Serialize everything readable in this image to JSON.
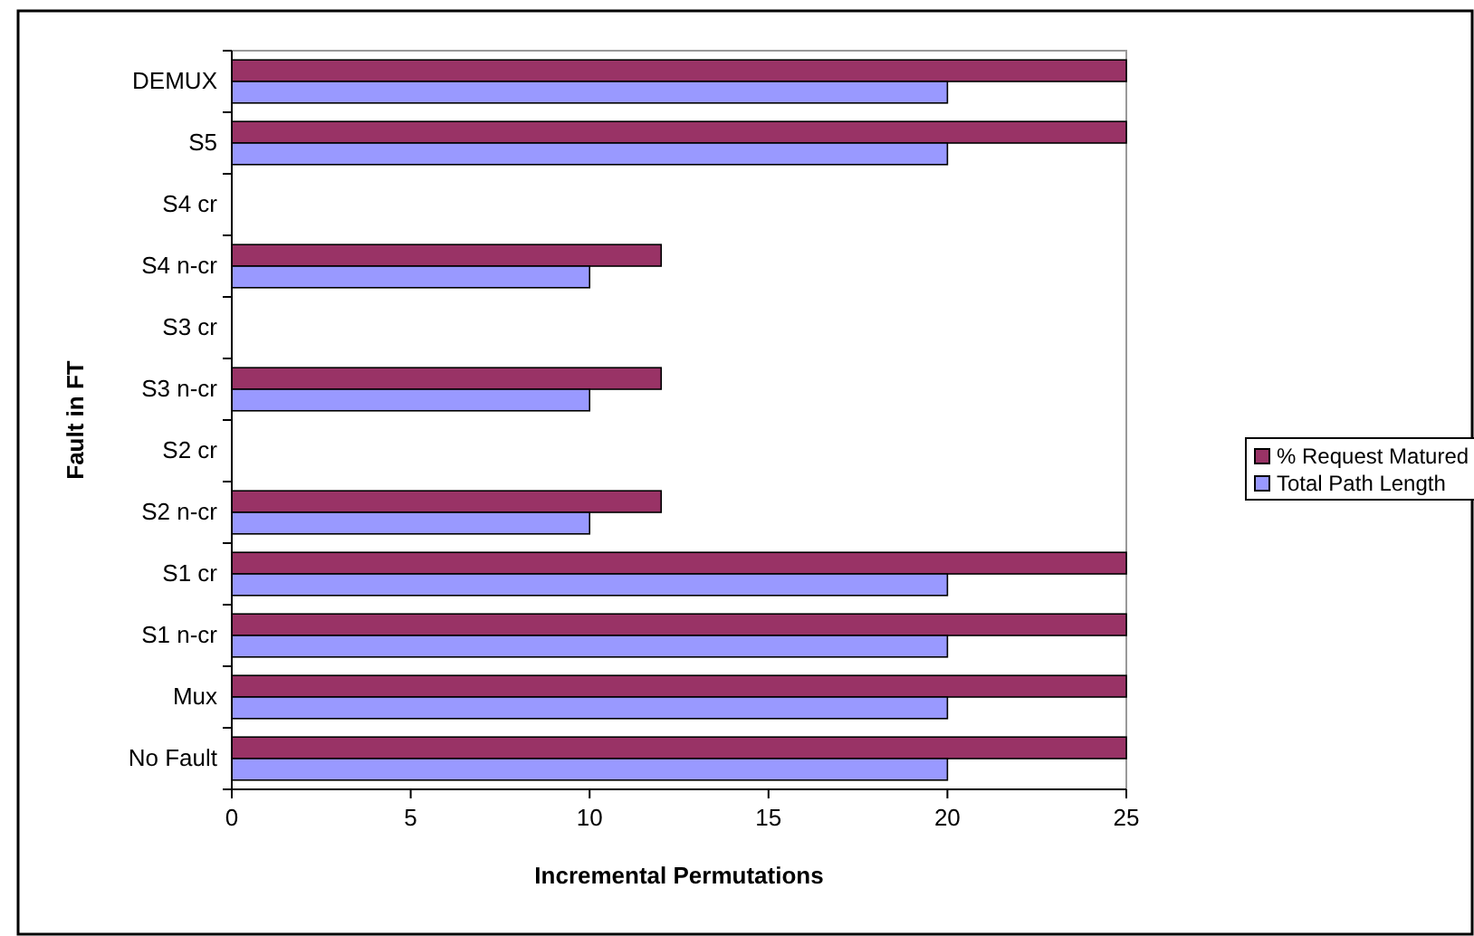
{
  "chart_data": {
    "type": "bar",
    "orientation": "horizontal",
    "xlabel": "Incremental Permutations",
    "ylabel": "Fault in FT",
    "categories": [
      "DEMUX",
      "S5",
      "S4 cr",
      "S4 n-cr",
      "S3 cr",
      "S3 n-cr",
      "S2 cr",
      "S2 n-cr",
      "S1 cr",
      "S1 n-cr",
      "Mux",
      "No Fault"
    ],
    "series": [
      {
        "name": "% Request Matured",
        "color": "#993366",
        "values": [
          25,
          25,
          0,
          12,
          0,
          12,
          0,
          12,
          25,
          25,
          25,
          25
        ]
      },
      {
        "name": "Total Path Length",
        "color": "#9999ff",
        "values": [
          20,
          20,
          0,
          10,
          0,
          10,
          0,
          10,
          20,
          20,
          20,
          20
        ]
      }
    ],
    "xlim": [
      0,
      25
    ],
    "xticks": [
      0,
      5,
      10,
      15,
      20,
      25
    ],
    "grid": false,
    "legend": "right"
  }
}
